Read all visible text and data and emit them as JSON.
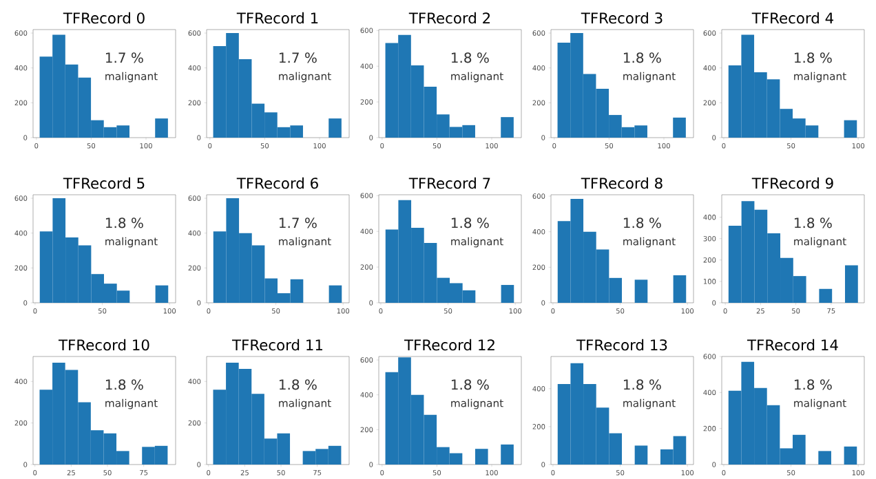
{
  "chart_data": [
    {
      "type": "histogram",
      "title": "TFRecord 0",
      "color": "#1f77b4",
      "bins": [
        3,
        14.7,
        26.4,
        38.1,
        49.8,
        61.5,
        73.2,
        84.9,
        96.6,
        108.3,
        120
      ],
      "values": [
        465,
        590,
        420,
        345,
        100,
        60,
        70,
        0,
        0,
        110
      ],
      "xlim": [
        -3,
        127
      ],
      "ylim": [
        0,
        620
      ],
      "xticks": [
        0,
        50,
        100
      ],
      "yticks": [
        0,
        200,
        400,
        600
      ],
      "annotations": [
        "1.7 %",
        "malignant"
      ]
    },
    {
      "type": "histogram",
      "title": "TFRecord 1",
      "color": "#1f77b4",
      "bins": [
        3,
        14.7,
        26.4,
        38.1,
        49.8,
        61.5,
        73.2,
        84.9,
        96.6,
        108.3,
        120
      ],
      "values": [
        525,
        600,
        450,
        195,
        145,
        60,
        70,
        0,
        0,
        110
      ],
      "xlim": [
        -3,
        127
      ],
      "ylim": [
        0,
        620
      ],
      "xticks": [
        0,
        50,
        100
      ],
      "yticks": [
        0,
        200,
        400,
        600
      ],
      "annotations": [
        "1.7 %",
        "malignant"
      ]
    },
    {
      "type": "histogram",
      "title": "TFRecord 2",
      "color": "#1f77b4",
      "bins": [
        3,
        14.7,
        26.4,
        38.1,
        49.8,
        61.5,
        73.2,
        84.9,
        96.6,
        108.3,
        120
      ],
      "values": [
        530,
        575,
        405,
        285,
        130,
        60,
        70,
        0,
        0,
        115
      ],
      "xlim": [
        -3,
        127
      ],
      "ylim": [
        0,
        605
      ],
      "xticks": [
        0,
        50,
        100
      ],
      "yticks": [
        0,
        200,
        400,
        600
      ],
      "annotations": [
        "1.8 %",
        "malignant"
      ]
    },
    {
      "type": "histogram",
      "title": "TFRecord 3",
      "color": "#1f77b4",
      "bins": [
        3,
        14.7,
        26.4,
        38.1,
        49.8,
        61.5,
        73.2,
        84.9,
        96.6,
        108.3,
        120
      ],
      "values": [
        545,
        600,
        365,
        280,
        130,
        60,
        70,
        0,
        0,
        115
      ],
      "xlim": [
        -3,
        127
      ],
      "ylim": [
        0,
        620
      ],
      "xticks": [
        0,
        50,
        100
      ],
      "yticks": [
        0,
        200,
        400,
        600
      ],
      "annotations": [
        "1.8 %",
        "malignant"
      ]
    },
    {
      "type": "histogram",
      "title": "TFRecord 4",
      "color": "#1f77b4",
      "bins": [
        3.5,
        13.05,
        22.6,
        32.15,
        41.7,
        51.25,
        60.8,
        70.35,
        79.9,
        89.45,
        99
      ],
      "values": [
        415,
        590,
        375,
        335,
        165,
        110,
        70,
        0,
        0,
        100
      ],
      "xlim": [
        -1.5,
        104.5
      ],
      "ylim": [
        0,
        620
      ],
      "xticks": [
        0,
        50,
        100
      ],
      "yticks": [
        0,
        200,
        400,
        600
      ],
      "annotations": [
        "1.8 %",
        "malignant"
      ]
    },
    {
      "type": "histogram",
      "title": "TFRecord 5",
      "color": "#1f77b4",
      "bins": [
        3.5,
        13.05,
        22.6,
        32.15,
        41.7,
        51.25,
        60.8,
        70.35,
        79.9,
        89.45,
        99
      ],
      "values": [
        410,
        600,
        375,
        330,
        165,
        110,
        70,
        0,
        0,
        100
      ],
      "xlim": [
        -1.5,
        104.5
      ],
      "ylim": [
        0,
        620
      ],
      "xticks": [
        0,
        50,
        100
      ],
      "yticks": [
        0,
        200,
        400,
        600
      ],
      "annotations": [
        "1.8 %",
        "malignant"
      ]
    },
    {
      "type": "histogram",
      "title": "TFRecord 6",
      "color": "#1f77b4",
      "bins": [
        3.5,
        13.05,
        22.6,
        32.15,
        41.7,
        51.25,
        60.8,
        70.35,
        79.9,
        89.45,
        99
      ],
      "values": [
        410,
        600,
        400,
        330,
        140,
        55,
        135,
        0,
        0,
        100
      ],
      "xlim": [
        -1.5,
        104.5
      ],
      "ylim": [
        0,
        620
      ],
      "xticks": [
        0,
        50,
        100
      ],
      "yticks": [
        0,
        200,
        400,
        600
      ],
      "annotations": [
        "1.7 %",
        "malignant"
      ]
    },
    {
      "type": "histogram",
      "title": "TFRecord 7",
      "color": "#1f77b4",
      "bins": [
        3.5,
        13.05,
        22.6,
        32.15,
        41.7,
        51.25,
        60.8,
        70.35,
        79.9,
        89.45,
        99
      ],
      "values": [
        410,
        575,
        420,
        335,
        140,
        110,
        70,
        0,
        0,
        100
      ],
      "xlim": [
        -1.5,
        104.5
      ],
      "ylim": [
        0,
        605
      ],
      "xticks": [
        0,
        50,
        100
      ],
      "yticks": [
        0,
        200,
        400,
        600
      ],
      "annotations": [
        "1.8 %",
        "malignant"
      ]
    },
    {
      "type": "histogram",
      "title": "TFRecord 8",
      "color": "#1f77b4",
      "bins": [
        3.5,
        13.05,
        22.6,
        32.15,
        41.7,
        51.25,
        60.8,
        70.35,
        79.9,
        89.45,
        99
      ],
      "values": [
        460,
        585,
        400,
        300,
        140,
        0,
        130,
        0,
        0,
        155
      ],
      "xlim": [
        -1.5,
        104.5
      ],
      "ylim": [
        0,
        608
      ],
      "xticks": [
        0,
        50,
        100
      ],
      "yticks": [
        0,
        200,
        400,
        600
      ],
      "annotations": [
        "1.8 %",
        "malignant"
      ]
    },
    {
      "type": "histogram",
      "title": "TFRecord 9",
      "color": "#1f77b4",
      "bins": [
        2.3,
        11.47,
        20.64,
        29.81,
        38.98,
        48.15,
        57.32,
        66.49,
        75.66,
        84.83,
        94
      ],
      "values": [
        360,
        475,
        435,
        325,
        210,
        125,
        0,
        65,
        0,
        175
      ],
      "xlim": [
        -2.5,
        98.5
      ],
      "ylim": [
        0,
        505
      ],
      "xticks": [
        0,
        25,
        50,
        75
      ],
      "yticks": [
        0,
        100,
        200,
        300,
        400
      ],
      "annotations": [
        "1.8 %",
        "malignant"
      ]
    },
    {
      "type": "histogram",
      "title": "TFRecord 10",
      "color": "#1f77b4",
      "bins": [
        3.2,
        12.03,
        20.86,
        29.69,
        38.52,
        47.35,
        56.18,
        65.01,
        73.84,
        82.67,
        91.5
      ],
      "values": [
        360,
        490,
        455,
        300,
        165,
        150,
        65,
        0,
        85,
        90
      ],
      "xlim": [
        -1.3,
        97
      ],
      "ylim": [
        0,
        520
      ],
      "xticks": [
        0,
        25,
        50,
        75
      ],
      "yticks": [
        0,
        200,
        400
      ],
      "annotations": [
        "1.8 %",
        "malignant"
      ]
    },
    {
      "type": "histogram",
      "title": "TFRecord 11",
      "color": "#1f77b4",
      "bins": [
        3.2,
        12.03,
        20.86,
        29.69,
        38.52,
        47.35,
        56.18,
        65.01,
        73.84,
        82.67,
        91.5
      ],
      "values": [
        360,
        490,
        460,
        340,
        125,
        150,
        0,
        65,
        75,
        90
      ],
      "xlim": [
        -1.3,
        97
      ],
      "ylim": [
        0,
        520
      ],
      "xticks": [
        0,
        25,
        50,
        75
      ],
      "yticks": [
        0,
        200,
        400
      ],
      "annotations": [
        "1.8 %",
        "malignant"
      ]
    },
    {
      "type": "histogram",
      "title": "TFRecord 12",
      "color": "#1f77b4",
      "bins": [
        3,
        14.7,
        26.4,
        38.1,
        49.8,
        61.5,
        73.2,
        84.9,
        96.6,
        108.3,
        120
      ],
      "values": [
        530,
        615,
        400,
        285,
        100,
        65,
        0,
        90,
        0,
        115
      ],
      "xlim": [
        -3,
        127
      ],
      "ylim": [
        0,
        620
      ],
      "xticks": [
        0,
        50,
        100
      ],
      "yticks": [
        0,
        200,
        400,
        600
      ],
      "annotations": [
        "1.8 %",
        "malignant"
      ]
    },
    {
      "type": "histogram",
      "title": "TFRecord 13",
      "color": "#1f77b4",
      "bins": [
        3.5,
        13.05,
        22.6,
        32.15,
        41.7,
        51.25,
        60.8,
        70.35,
        79.9,
        89.45,
        99
      ],
      "values": [
        425,
        535,
        425,
        300,
        165,
        0,
        100,
        0,
        80,
        150
      ],
      "xlim": [
        -1.5,
        104.5
      ],
      "ylim": [
        0,
        570
      ],
      "xticks": [
        0,
        50,
        100
      ],
      "yticks": [
        0,
        200,
        400
      ],
      "annotations": [
        "1.8 %",
        "malignant"
      ]
    },
    {
      "type": "histogram",
      "title": "TFRecord 14",
      "color": "#1f77b4",
      "bins": [
        3.5,
        13.05,
        22.6,
        32.15,
        41.7,
        51.25,
        60.8,
        70.35,
        79.9,
        89.45,
        99
      ],
      "values": [
        410,
        570,
        425,
        330,
        90,
        165,
        0,
        75,
        0,
        100
      ],
      "xlim": [
        -1.5,
        104.5
      ],
      "ylim": [
        0,
        600
      ],
      "xticks": [
        0,
        50,
        100
      ],
      "yticks": [
        0,
        200,
        400,
        600
      ],
      "annotations": [
        "1.8 %",
        "malignant"
      ]
    }
  ]
}
